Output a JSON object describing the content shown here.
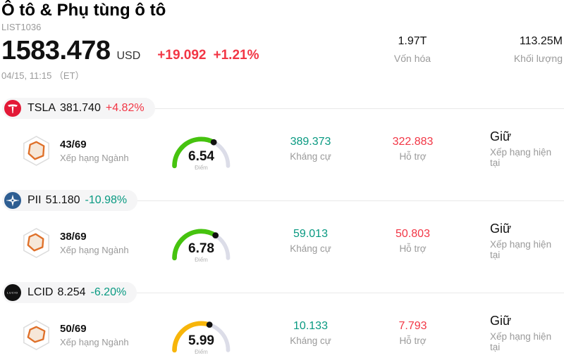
{
  "header": {
    "title": "Ô tô & Phụ tùng ô tô",
    "subtitle": "LIST1036",
    "price": "1583.478",
    "currency": "USD",
    "change": "+19.092",
    "change_pct": "+1.21%",
    "change_color": "#f23645",
    "timestamp": "04/15, 11:15 （ET）",
    "market_cap": {
      "value": "1.97T",
      "label": "Vốn hóa"
    },
    "volume": {
      "value": "113.25M",
      "label": "Khối lượng"
    }
  },
  "labels": {
    "industry_rank": "Xếp hạng Ngành",
    "score": "Điểm",
    "resistance": "Kháng cự",
    "support": "Hỗ trợ",
    "current_rating": "Xếp hạng hiện tại"
  },
  "colors": {
    "up_red": "#f23645",
    "down_green": "#089981",
    "gauge_green": "#46c30f",
    "gauge_yellow": "#f7b50a",
    "gauge_track": "#dcdde8"
  },
  "stocks": [
    {
      "symbol": "TSLA",
      "price": "381.740",
      "change_pct": "+4.82%",
      "change_color": "#f23645",
      "logo": "tesla-logo",
      "rank": "43/69",
      "score": 6.54,
      "score_display": "6.54",
      "gauge_color": "#46c30f",
      "resistance": "389.373",
      "support": "322.883",
      "rating": "Giữ"
    },
    {
      "symbol": "PII",
      "price": "51.180",
      "change_pct": "-10.98%",
      "change_color": "#089981",
      "logo": "pii-logo",
      "rank": "38/69",
      "score": 6.78,
      "score_display": "6.78",
      "gauge_color": "#46c30f",
      "resistance": "59.013",
      "support": "50.803",
      "rating": "Giữ"
    },
    {
      "symbol": "LCID",
      "price": "8.254",
      "change_pct": "-6.20%",
      "change_color": "#089981",
      "logo": "lucid-logo",
      "rank": "50/69",
      "score": 5.99,
      "score_display": "5.99",
      "gauge_color": "#f7b50a",
      "resistance": "10.133",
      "support": "7.793",
      "rating": "Giữ"
    }
  ]
}
